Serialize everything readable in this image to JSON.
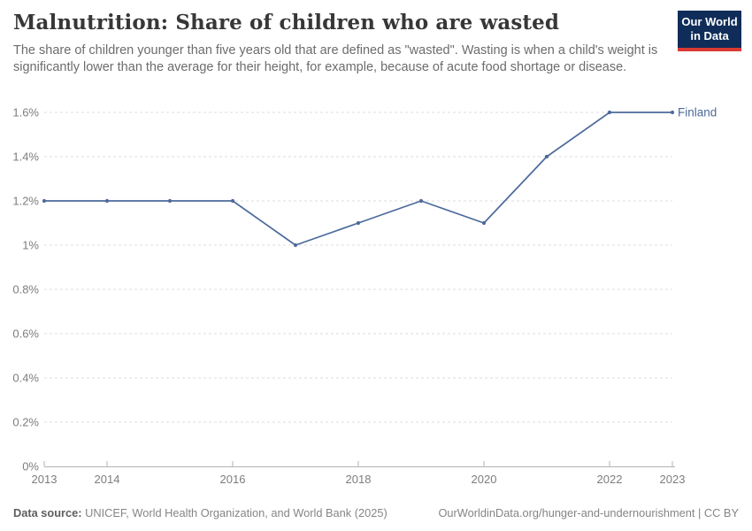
{
  "header": {
    "title": "Malnutrition: Share of children who are wasted",
    "subtitle": "The share of children younger than five years old that are defined as \"wasted\". Wasting is when a child's weight is significantly lower than the average for their height, for example, because of acute food shortage or disease.",
    "logo": {
      "line1": "Our World",
      "line2": "in Data",
      "bg_color": "#102d59",
      "accent_color": "#d93a33"
    }
  },
  "chart_data": {
    "type": "line",
    "title": "Malnutrition: Share of children who are wasted",
    "x": [
      2013,
      2014,
      2015,
      2016,
      2017,
      2018,
      2019,
      2020,
      2021,
      2022,
      2023
    ],
    "series": [
      {
        "name": "Finland",
        "color": "#4c6a9c",
        "values": [
          1.2,
          1.2,
          1.2,
          1.2,
          1.0,
          1.1,
          1.2,
          1.1,
          1.4,
          1.6,
          1.6
        ]
      }
    ],
    "ylim": [
      0,
      1.6
    ],
    "y_ticks": [
      0,
      0.2,
      0.4,
      0.6,
      0.8,
      1.0,
      1.2,
      1.4,
      1.6
    ],
    "y_tick_labels": [
      "0%",
      "0.2%",
      "0.4%",
      "0.6%",
      "0.8%",
      "1%",
      "1.2%",
      "1.4%",
      "1.6%"
    ],
    "x_ticks": [
      2013,
      2014,
      2016,
      2018,
      2020,
      2022,
      2023
    ],
    "xlabel": "",
    "ylabel": "",
    "grid": "horizontal-dashed",
    "legend_position": "end-of-line",
    "colors": {
      "grid": "#dcdcdc",
      "axis": "#b3b3b3"
    }
  },
  "footer": {
    "datasource_label": "Data source:",
    "datasource_text": " UNICEF, World Health Organization, and World Bank (2025)",
    "link_text": "OurWorldinData.org/hunger-and-undernourishment | CC BY"
  }
}
